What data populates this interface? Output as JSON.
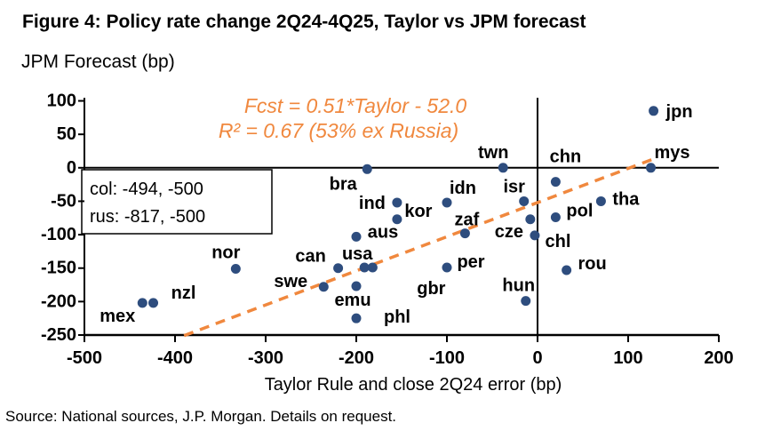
{
  "source": "Source: National sources, J.P. Morgan. Details on request.",
  "colors": {
    "point": "#2E4D7E",
    "trend": "#F0883E",
    "axis": "#000000",
    "annotation": "#F0883E"
  },
  "chart_data": {
    "type": "scatter",
    "title": "Figure 4: Policy rate change 2Q24-4Q25, Taylor vs JPM forecast",
    "ylabel": "JPM Forecast (bp)",
    "xlabel": "Taylor Rule and close 2Q24 error (bp)",
    "xlim": [
      -500,
      200
    ],
    "ylim": [
      -250,
      100
    ],
    "x_ticks": [
      -500,
      -400,
      -300,
      -200,
      -100,
      0,
      100,
      200
    ],
    "y_ticks": [
      100,
      50,
      0,
      -50,
      -100,
      -150,
      -200,
      -250
    ],
    "grid": false,
    "annotations": {
      "equation": "Fcst = 0.51*Taylor - 52.0",
      "r_squared": "R² = 0.67 (53% ex Russia)",
      "outliers": [
        "col: -494, -500",
        "rus: -817, -500"
      ]
    },
    "trend": {
      "style": "dashed",
      "slope": 0.51,
      "intercept": -52.0,
      "x_range": [
        -390,
        133
      ]
    },
    "points": [
      {
        "code": "jpn",
        "x": 128,
        "y": 85,
        "label_offset": [
          29,
          1
        ]
      },
      {
        "code": "mys",
        "x": 125,
        "y": 0,
        "label_offset": [
          24,
          -17
        ]
      },
      {
        "code": "twn",
        "x": -38,
        "y": 0,
        "label_offset": [
          -11,
          -17
        ]
      },
      {
        "code": "bra",
        "x": -188,
        "y": -2,
        "label_offset": [
          -27,
          17
        ]
      },
      {
        "code": "chn",
        "x": 20,
        "y": -21,
        "label_offset": [
          11,
          -28
        ]
      },
      {
        "code": "isr",
        "x": -15,
        "y": -50,
        "label_offset": [
          -11,
          -16
        ]
      },
      {
        "code": "idn",
        "x": -100,
        "y": -52,
        "label_offset": [
          18,
          -16
        ]
      },
      {
        "code": "ind",
        "x": -155,
        "y": -52,
        "label_offset": [
          -28,
          1
        ]
      },
      {
        "code": "kor",
        "x": -155,
        "y": -77,
        "label_offset": [
          24,
          -9
        ]
      },
      {
        "code": "tha",
        "x": 70,
        "y": -50,
        "label_offset": [
          28,
          -2
        ]
      },
      {
        "code": "zaf",
        "x": -80,
        "y": -98,
        "label_offset": [
          2,
          -15
        ]
      },
      {
        "code": "aus",
        "x": -200,
        "y": -103,
        "label_offset": [
          30,
          -5
        ]
      },
      {
        "code": "cze",
        "x": -8,
        "y": -77,
        "label_offset": [
          -24,
          14
        ]
      },
      {
        "code": "chl",
        "x": -3,
        "y": -101,
        "label_offset": [
          26,
          7
        ]
      },
      {
        "code": "pol",
        "x": 20,
        "y": -74,
        "label_offset": [
          27,
          -7
        ]
      },
      {
        "code": "per",
        "x": -100,
        "y": -149,
        "label_offset": [
          27,
          -6
        ]
      },
      {
        "code": "rou",
        "x": 32,
        "y": -153,
        "label_offset": [
          29,
          -7
        ]
      },
      {
        "code": "hun",
        "x": -13,
        "y": -199,
        "label_offset": [
          -8,
          -17
        ]
      },
      {
        "code": "nor",
        "x": -333,
        "y": -151,
        "label_offset": [
          -11,
          -18
        ]
      },
      {
        "code": "mex",
        "x": -436,
        "y": -202,
        "label_offset": [
          -28,
          15
        ]
      },
      {
        "code": "nzl",
        "x": -424,
        "y": -202,
        "label_offset": [
          34,
          -11
        ]
      },
      {
        "code": "swe",
        "x": -236,
        "y": -178,
        "label_offset": [
          -37,
          -6
        ]
      },
      {
        "code": "can",
        "x": -220,
        "y": -150,
        "label_offset": [
          -31,
          -13
        ]
      },
      {
        "code": "usa",
        "x": -191,
        "y": -149,
        "label_offset": [
          -8,
          -15
        ]
      },
      {
        "code": "gbr",
        "x": -182,
        "y": -149,
        "label_offset": [
          66,
          24
        ]
      },
      {
        "code": "emu",
        "x": -200,
        "y": -177,
        "label_offset": [
          -4,
          16
        ]
      },
      {
        "code": "phl",
        "x": -200,
        "y": -225,
        "label_offset": [
          46,
          -1
        ]
      }
    ]
  }
}
